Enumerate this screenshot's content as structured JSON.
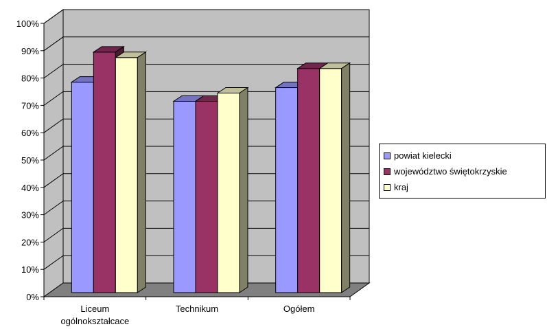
{
  "chart_data": {
    "type": "bar",
    "title": "",
    "xlabel": "",
    "ylabel": "",
    "categories": [
      "Liceum ogólnokształcace",
      "Technikum",
      "Ogółem"
    ],
    "series": [
      {
        "name": "powiat kielecki",
        "values": [
          80,
          73,
          78
        ],
        "color": "#9999ff"
      },
      {
        "name": "województwo świętokrzyskie",
        "values": [
          91,
          73,
          85
        ],
        "color": "#993366"
      },
      {
        "name": "kraj",
        "values": [
          89,
          76,
          85
        ],
        "color": "#ffffcc"
      }
    ],
    "ylim": [
      0,
      100
    ],
    "yticks": [
      "0%",
      "10%",
      "20%",
      "30%",
      "40%",
      "50%",
      "60%",
      "70%",
      "80%",
      "90%",
      "100%"
    ],
    "grid": true,
    "three_d": true,
    "wall_color": "#c0c0c0",
    "floor_color": "#808080",
    "legend_position": "right"
  }
}
